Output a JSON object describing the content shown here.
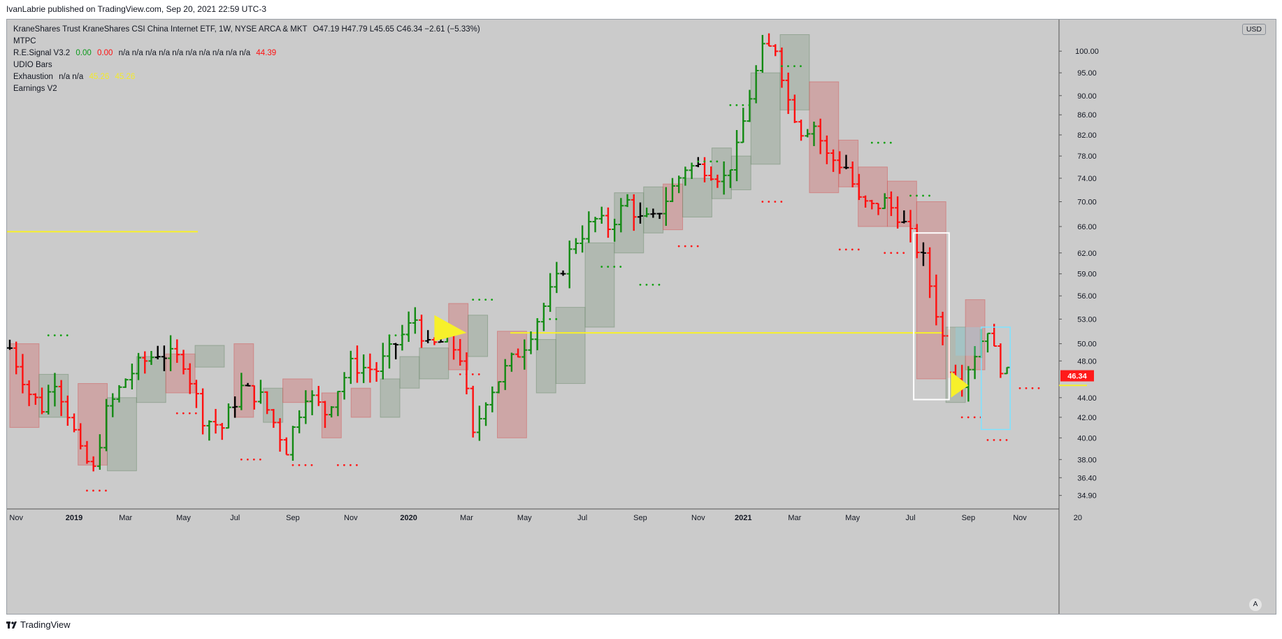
{
  "header": {
    "publish_line": "IvanLabrie published on TradingView.com, Sep 20, 2021 22:59 UTC-3"
  },
  "legend": {
    "symbol_line": "KraneShares Trust KraneShares CSI China Internet ETF, 1W, NYSE ARCA & MKT",
    "ohlc": "O47.19  H47.79  L45.65  C46.34  −2.61 (−5.33%)",
    "mtpc": "MTPC",
    "re_signal": {
      "name": "R.E.Signal V3.2",
      "v1": "0.00",
      "v2": "0.00",
      "na": "n/a  n/a  n/a  n/a  n/a  n/a  n/a  n/a  n/a  n/a",
      "v3": "44.39"
    },
    "udio": "UDIO Bars",
    "exhaustion": {
      "name": "Exhaustion",
      "na": "n/a  n/a",
      "v1": "45.26",
      "v2": "45.26"
    },
    "earnings": "Earnings V2"
  },
  "currency": "USD",
  "auto_label": "A",
  "footer": {
    "brand": "TradingView"
  },
  "colors": {
    "background": "#cbcbcb",
    "up": "#138a13",
    "down": "#ff1010",
    "neutral": "#000000",
    "yellow": "#f7f02a",
    "cyan": "#7fe3ff",
    "white_box": "#ffffff",
    "price_tag": "#ff1a1a"
  },
  "chart_data": {
    "type": "ohlc",
    "instrument": "KraneShares CSI China Internet ETF (KWEB)",
    "timeframe": "1W",
    "y_scale": "log",
    "ylim": [
      33.8,
      106
    ],
    "price_ticks": [
      100.0,
      95.0,
      90.0,
      86.0,
      82.0,
      78.0,
      74.0,
      70.0,
      66.0,
      62.0,
      59.0,
      56.0,
      53.0,
      50.0,
      48.0,
      44.0,
      42.0,
      40.0,
      38.0,
      36.4,
      34.9
    ],
    "time_labels": [
      {
        "label": "Nov",
        "week": 1
      },
      {
        "label": "2019",
        "week": 10
      },
      {
        "label": "Mar",
        "week": 18
      },
      {
        "label": "May",
        "week": 27
      },
      {
        "label": "Jul",
        "week": 35
      },
      {
        "label": "Sep",
        "week": 44
      },
      {
        "label": "Nov",
        "week": 53
      },
      {
        "label": "2020",
        "week": 62
      },
      {
        "label": "Mar",
        "week": 71
      },
      {
        "label": "May",
        "week": 80
      },
      {
        "label": "Jul",
        "week": 89
      },
      {
        "label": "Sep",
        "week": 98
      },
      {
        "label": "Nov",
        "week": 107
      },
      {
        "label": "2021",
        "week": 114
      },
      {
        "label": "Mar",
        "week": 122
      },
      {
        "label": "May",
        "week": 131
      },
      {
        "label": "Jul",
        "week": 140
      },
      {
        "label": "Sep",
        "week": 149
      },
      {
        "label": "Nov",
        "week": 157
      },
      {
        "label": "20",
        "week": 166
      }
    ],
    "last_price": "46.34",
    "anchors": [
      [
        0,
        49.5
      ],
      [
        3,
        44.5
      ],
      [
        5,
        43.0
      ],
      [
        7,
        46.0
      ],
      [
        9,
        42.5
      ],
      [
        11,
        38.5
      ],
      [
        13,
        37.0
      ],
      [
        15,
        42.5
      ],
      [
        18,
        46.0
      ],
      [
        20,
        47.5
      ],
      [
        23,
        49.0
      ],
      [
        27,
        48.0
      ],
      [
        30,
        42.0
      ],
      [
        33,
        41.0
      ],
      [
        36,
        45.0
      ],
      [
        39,
        44.0
      ],
      [
        43,
        39.0
      ],
      [
        46,
        44.5
      ],
      [
        49,
        42.5
      ],
      [
        53,
        47.5
      ],
      [
        57,
        47.0
      ],
      [
        60,
        50.0
      ],
      [
        63,
        53.0
      ],
      [
        65,
        49.5
      ],
      [
        68,
        50.5
      ],
      [
        70,
        48.5
      ],
      [
        72,
        40.0
      ],
      [
        74,
        44.0
      ],
      [
        77,
        47.0
      ],
      [
        80,
        50.0
      ],
      [
        82,
        53.0
      ],
      [
        85,
        58.0
      ],
      [
        88,
        64.0
      ],
      [
        91,
        67.0
      ],
      [
        93,
        66.0
      ],
      [
        96,
        70.0
      ],
      [
        98,
        67.0
      ],
      [
        100,
        67.0
      ],
      [
        102,
        70.5
      ],
      [
        105,
        76.0
      ],
      [
        108,
        76.0
      ],
      [
        111,
        74.0
      ],
      [
        113,
        79.0
      ],
      [
        115,
        90.0
      ],
      [
        117,
        100.0
      ],
      [
        119,
        101.0
      ],
      [
        121,
        89.0
      ],
      [
        123,
        83.0
      ],
      [
        125,
        84.0
      ],
      [
        127,
        78.0
      ],
      [
        130,
        76.0
      ],
      [
        132,
        70.0
      ],
      [
        134,
        69.0
      ],
      [
        136,
        70.0
      ],
      [
        138,
        68.0
      ],
      [
        140,
        64.5
      ],
      [
        142,
        61.0
      ],
      [
        144,
        54.0
      ],
      [
        146,
        47.5
      ],
      [
        148,
        46.0
      ],
      [
        150,
        49.0
      ],
      [
        152,
        52.0
      ],
      [
        153,
        49.0
      ],
      [
        154,
        47.5
      ],
      [
        155,
        46.34
      ]
    ],
    "rect_zones": [
      {
        "w0": 0,
        "w1": 3,
        "lo": 41.0,
        "hi": 50.0,
        "kind": "down"
      },
      {
        "w0": 3,
        "w1": 6,
        "lo": 42.0,
        "hi": 46.5,
        "kind": "up"
      },
      {
        "w0": 7,
        "w1": 10,
        "lo": 37.5,
        "hi": 45.5,
        "kind": "down"
      },
      {
        "w0": 10,
        "w1": 13,
        "lo": 37.0,
        "hi": 44.0,
        "kind": "up"
      },
      {
        "w0": 13,
        "w1": 16,
        "lo": 43.5,
        "hi": 48.5,
        "kind": "up"
      },
      {
        "w0": 16,
        "w1": 19,
        "lo": 44.5,
        "hi": 48.8,
        "kind": "down"
      },
      {
        "w0": 19,
        "w1": 22,
        "lo": 47.3,
        "hi": 49.8,
        "kind": "up"
      },
      {
        "w0": 23,
        "w1": 25,
        "lo": 42.0,
        "hi": 50.0,
        "kind": "down"
      },
      {
        "w0": 26,
        "w1": 28,
        "lo": 41.5,
        "hi": 45.0,
        "kind": "up"
      },
      {
        "w0": 28,
        "w1": 31,
        "lo": 43.5,
        "hi": 46.0,
        "kind": "down"
      },
      {
        "w0": 32,
        "w1": 34,
        "lo": 40.0,
        "hi": 44.5,
        "kind": "down"
      },
      {
        "w0": 35,
        "w1": 37,
        "lo": 42.0,
        "hi": 45.0,
        "kind": "down"
      },
      {
        "w0": 38,
        "w1": 40,
        "lo": 42.0,
        "hi": 46.0,
        "kind": "up"
      },
      {
        "w0": 40,
        "w1": 42,
        "lo": 45.0,
        "hi": 48.5,
        "kind": "up"
      },
      {
        "w0": 42,
        "w1": 45,
        "lo": 46.0,
        "hi": 49.5,
        "kind": "up"
      },
      {
        "w0": 45,
        "w1": 47,
        "lo": 47.0,
        "hi": 55.0,
        "kind": "down"
      },
      {
        "w0": 47,
        "w1": 49,
        "lo": 48.5,
        "hi": 53.5,
        "kind": "up"
      },
      {
        "w0": 50,
        "w1": 53,
        "lo": 40.0,
        "hi": 51.5,
        "kind": "down"
      },
      {
        "w0": 54,
        "w1": 56,
        "lo": 44.5,
        "hi": 50.5,
        "kind": "up"
      },
      {
        "w0": 56,
        "w1": 59,
        "lo": 45.5,
        "hi": 54.5,
        "kind": "up"
      },
      {
        "w0": 59,
        "w1": 62,
        "lo": 52.0,
        "hi": 63.5,
        "kind": "up"
      },
      {
        "w0": 62,
        "w1": 65,
        "lo": 62.0,
        "hi": 71.5,
        "kind": "up"
      },
      {
        "w0": 65,
        "w1": 67,
        "lo": 65.0,
        "hi": 72.5,
        "kind": "up"
      },
      {
        "w0": 67,
        "w1": 69,
        "lo": 65.5,
        "hi": 73.0,
        "kind": "down"
      },
      {
        "w0": 69,
        "w1": 72,
        "lo": 67.5,
        "hi": 74.0,
        "kind": "up"
      },
      {
        "w0": 72,
        "w1": 74,
        "lo": 70.5,
        "hi": 79.5,
        "kind": "up"
      },
      {
        "w0": 74,
        "w1": 76,
        "lo": 72.0,
        "hi": 78.0,
        "kind": "up"
      },
      {
        "w0": 76,
        "w1": 79,
        "lo": 76.5,
        "hi": 95.0,
        "kind": "up"
      },
      {
        "w0": 79,
        "w1": 82,
        "lo": 87.0,
        "hi": 104.0,
        "kind": "up"
      },
      {
        "w0": 82,
        "w1": 85,
        "lo": 71.5,
        "hi": 93.0,
        "kind": "down"
      },
      {
        "w0": 85,
        "w1": 87,
        "lo": 72.5,
        "hi": 81.0,
        "kind": "down"
      },
      {
        "w0": 87,
        "w1": 90,
        "lo": 66.0,
        "hi": 76.0,
        "kind": "down"
      },
      {
        "w0": 90,
        "w1": 93,
        "lo": 66.0,
        "hi": 73.5,
        "kind": "down"
      },
      {
        "w0": 93,
        "w1": 96,
        "lo": 46.0,
        "hi": 70.0,
        "kind": "down"
      },
      {
        "w0": 96,
        "w1": 98,
        "lo": 43.5,
        "hi": 52.0,
        "kind": "up"
      },
      {
        "w0": 98,
        "w1": 100,
        "lo": 47.0,
        "hi": 55.5,
        "kind": "down"
      }
    ],
    "note": "week indices for rect zones are scaled to 0..100 range of the chart width"
  }
}
